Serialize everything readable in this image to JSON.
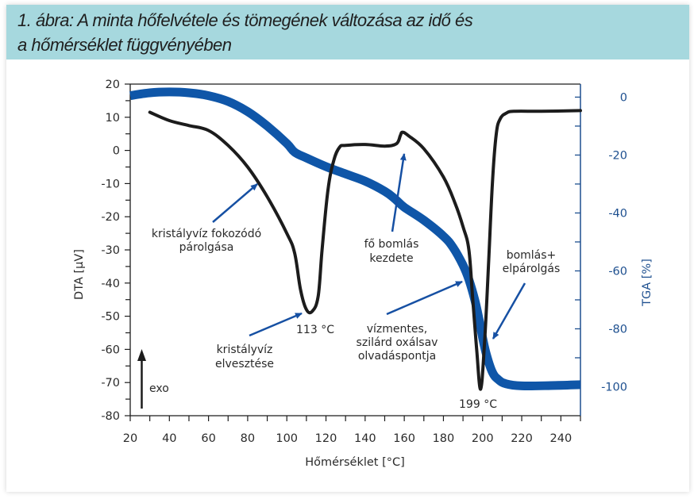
{
  "header": {
    "title_line1": "1. ábra: A minta hőfelvétele és tömegének változása az idő és",
    "title_line2": "a hőmérséklet függvényében"
  },
  "colors": {
    "title_bg": "#a6d8de",
    "dta_line": "#1c1c1c",
    "tga_line": "#0f56a8",
    "right_axis": "#1d4f8f",
    "arrow": "#1650a3"
  },
  "chart_data": {
    "type": "line",
    "title": "",
    "xlabel": "Hőmérséklet [°C]",
    "ylabel": "DTA [µV]",
    "y2label": "TGA [%]",
    "xlim": [
      20,
      250
    ],
    "ylim": [
      -80,
      20
    ],
    "y2lim": [
      -110,
      4.5
    ],
    "x_ticks": [
      20,
      40,
      60,
      80,
      100,
      120,
      140,
      160,
      180,
      200,
      220,
      240
    ],
    "y_ticks": [
      20,
      10,
      0,
      -10,
      -20,
      -30,
      -40,
      -50,
      -60,
      -70,
      -80
    ],
    "y2_ticks": [
      0,
      -20,
      -40,
      -60,
      -80,
      -100
    ],
    "grid": false,
    "series": [
      {
        "name": "DTA",
        "axis": "left",
        "x": [
          30,
          40,
          50,
          60,
          70,
          80,
          90,
          100,
          104,
          107,
          110,
          113,
          116,
          118,
          121,
          124,
          127,
          130,
          140,
          150,
          156,
          158,
          159,
          162,
          170,
          180,
          186,
          190,
          193,
          195,
          197,
          199,
          201,
          203,
          205,
          207,
          209,
          212,
          216,
          230,
          250
        ],
        "values": [
          11.5,
          9,
          7.5,
          6,
          1.5,
          -5,
          -14,
          -25,
          -31,
          -42,
          -48,
          -48.5,
          -44,
          -30,
          -12,
          -3,
          1,
          1.5,
          1.8,
          1.3,
          2,
          4.5,
          5.5,
          4.5,
          0.5,
          -8,
          -16,
          -23,
          -30,
          -45,
          -60,
          -72,
          -58,
          -35,
          -10,
          5,
          9.5,
          11.2,
          11.8,
          11.8,
          12
        ]
      },
      {
        "name": "TGA",
        "axis": "right",
        "x": [
          20,
          30,
          40,
          50,
          60,
          70,
          80,
          90,
          100,
          104,
          110,
          120,
          130,
          140,
          150,
          155,
          160,
          170,
          180,
          185,
          190,
          193,
          196,
          198,
          200,
          202,
          205,
          208,
          212,
          220,
          235,
          250
        ],
        "values": [
          0.5,
          1.5,
          1.8,
          1.5,
          0.5,
          -1.5,
          -5,
          -10,
          -16,
          -19,
          -21,
          -24,
          -26.5,
          -29,
          -32.5,
          -35,
          -38,
          -42.5,
          -48,
          -52,
          -58,
          -63,
          -70,
          -76,
          -83,
          -89,
          -95,
          -97.5,
          -99,
          -99.7,
          -99.6,
          -99.3
        ]
      }
    ],
    "annotations": [
      {
        "text_lines": [
          "kristályvíz fokozódó",
          "párolgása"
        ]
      },
      {
        "text_lines": [
          "113 °C"
        ]
      },
      {
        "text_lines": [
          "kristályvíz",
          "elvesztése"
        ]
      },
      {
        "text_lines": [
          "fő bomlás",
          "kezdete"
        ]
      },
      {
        "text_lines": [
          "vízmentes,",
          "szilárd oxálsav",
          "olvadáspontja"
        ]
      },
      {
        "text_lines": [
          "bomlás+",
          "elpárolgás"
        ]
      },
      {
        "text_lines": [
          "199 °C"
        ]
      },
      {
        "text_lines": [
          "exo"
        ]
      }
    ]
  }
}
